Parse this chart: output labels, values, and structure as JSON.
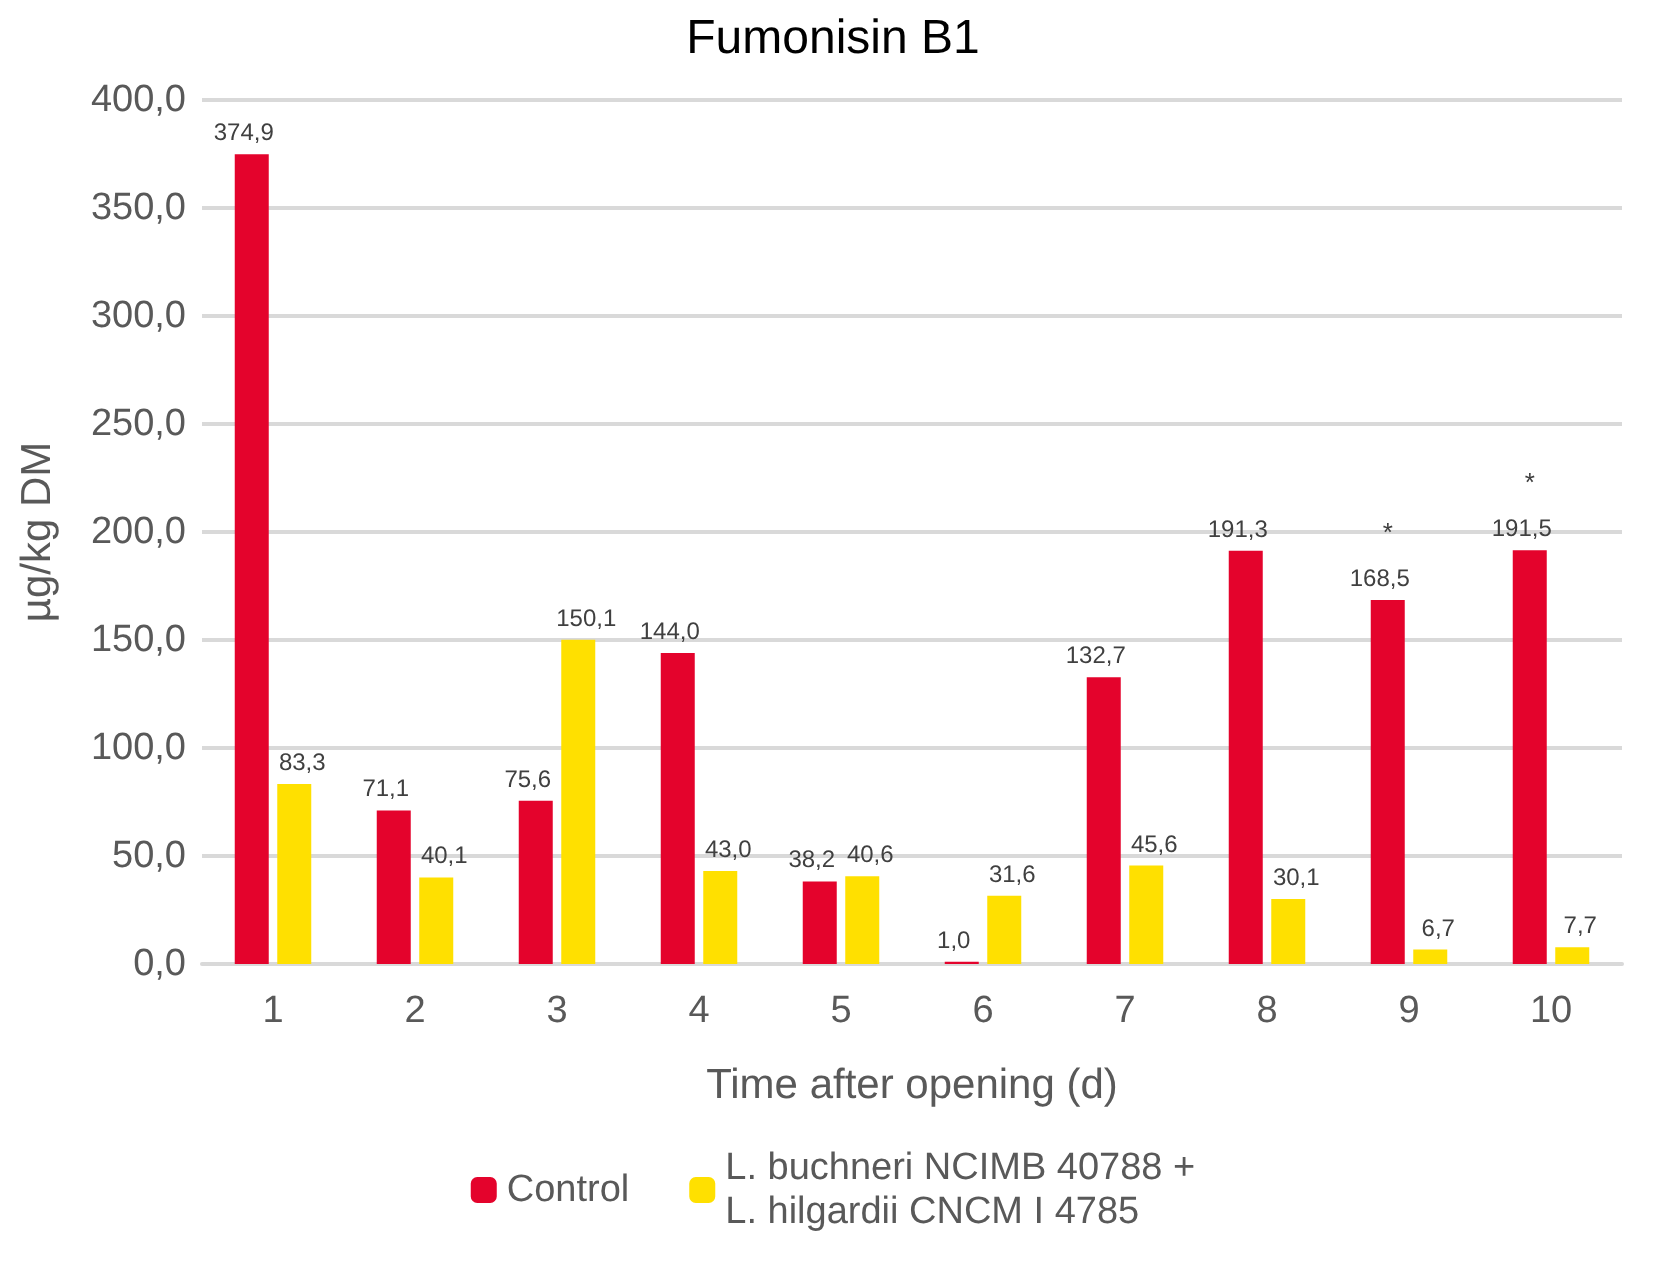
{
  "chart_data": {
    "type": "bar",
    "title": "Fumonisin B1",
    "xlabel": "Time after opening (d)",
    "ylabel": "µg/kg DM",
    "categories": [
      "1",
      "2",
      "3",
      "4",
      "5",
      "6",
      "7",
      "8",
      "9",
      "10"
    ],
    "series": [
      {
        "name": "Control",
        "color": "#e4032c",
        "values": [
          374.9,
          71.1,
          75.6,
          144.0,
          38.2,
          1.0,
          132.7,
          191.3,
          168.5,
          191.5
        ],
        "value_labels": [
          "374,9",
          "71,1",
          "75,6",
          "144,0",
          "38,2",
          "1,0",
          "132,7",
          "191,3",
          "168,5",
          "191,5"
        ]
      },
      {
        "name": "L. buchneri NCIMB 40788 +\nL. hilgardii CNCM I 4785",
        "color": "#ffe000",
        "values": [
          83.3,
          40.1,
          150.1,
          43.0,
          40.6,
          31.6,
          45.6,
          30.1,
          6.7,
          7.7
        ],
        "value_labels": [
          "83,3",
          "40,1",
          "150,1",
          "43,0",
          "40,6",
          "31,6",
          "45,6",
          "30,1",
          "6,7",
          "7,7"
        ]
      }
    ],
    "ylim": [
      0,
      400
    ],
    "yticks": [
      {
        "value": 0,
        "label": "0,0"
      },
      {
        "value": 50,
        "label": "50,0"
      },
      {
        "value": 100,
        "label": "100,0"
      },
      {
        "value": 150,
        "label": "150,0"
      },
      {
        "value": 200,
        "label": "200,0"
      },
      {
        "value": 250,
        "label": "250,0"
      },
      {
        "value": 300,
        "label": "300,0"
      },
      {
        "value": 350,
        "label": "350,0"
      },
      {
        "value": 400,
        "label": "400,0"
      }
    ],
    "annotations": [
      {
        "text": "*",
        "x": "9",
        "y": 168.5
      },
      {
        "text": "*",
        "x": "10",
        "y": 191.5
      }
    ],
    "grid": "y",
    "legend": "bottom"
  }
}
